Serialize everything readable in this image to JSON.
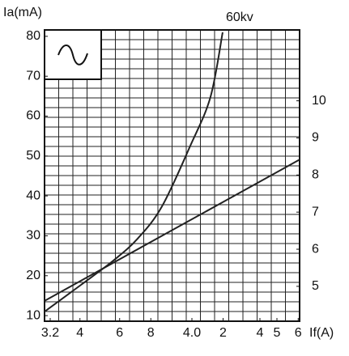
{
  "chart_data": {
    "type": "line",
    "y_label": "Ia(mA)",
    "x_label": "If(A)",
    "xlim": [
      0,
      18
    ],
    "xticks": [
      {
        "value": 0.4,
        "label": "3.2"
      },
      {
        "value": 2.5,
        "label": "4"
      },
      {
        "value": 5.3,
        "label": "6"
      },
      {
        "value": 7.5,
        "label": "8"
      },
      {
        "value": 10.4,
        "label": "4.0"
      },
      {
        "value": 12.6,
        "label": "2"
      },
      {
        "value": 15.2,
        "label": "4"
      },
      {
        "value": 16.4,
        "label": "5"
      },
      {
        "value": 17.9,
        "label": "6"
      }
    ],
    "ylim": [
      8.6,
      81.6
    ],
    "yticks": [
      10,
      20,
      30,
      40,
      50,
      60,
      70,
      80
    ],
    "y2lim": [
      4.06,
      11.91
    ],
    "y2ticks": [
      5,
      6,
      7,
      8,
      9,
      10
    ],
    "grid": true,
    "series": [
      {
        "name": "60kv",
        "color": "#222",
        "x": [
          0,
          2.57,
          4.86,
          6.57,
          8.29,
          10.29,
          11.71,
          12.57
        ],
        "values": [
          11.0,
          17.7,
          23.8,
          29.3,
          37.4,
          52.6,
          64.8,
          81.0
        ]
      },
      {
        "color": "#222",
        "x": [
          0,
          18
        ],
        "values": [
          13.7,
          49.1
        ]
      }
    ]
  }
}
